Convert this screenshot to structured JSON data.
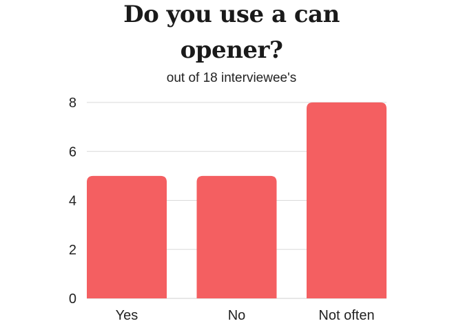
{
  "title_lines": [
    "Do you use a can",
    "opener?"
  ],
  "subtitle": "out of 18 interviewee's",
  "colors": {
    "bar": "#f45f61",
    "grid": "#d9d9d9",
    "axis": "#cfcfcf"
  },
  "chart_data": {
    "type": "bar",
    "title": "Do you use a can opener?",
    "subtitle": "out of 18 interviewee's",
    "categories": [
      "Yes",
      "No",
      "Not often"
    ],
    "values": [
      5,
      5,
      8
    ],
    "yticks": [
      0,
      2,
      4,
      6,
      8
    ],
    "ylim": [
      0,
      8
    ],
    "xlabel": "",
    "ylabel": "",
    "grid": true,
    "legend": "none"
  }
}
